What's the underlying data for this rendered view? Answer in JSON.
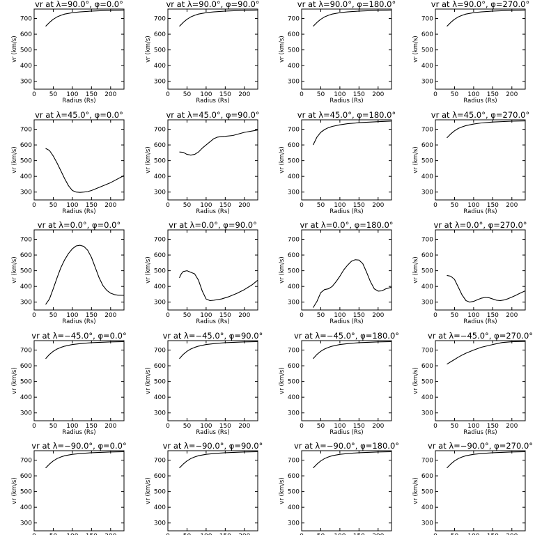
{
  "chart_data": {
    "type": "line",
    "grid": false,
    "xlim": [
      0,
      235
    ],
    "ylim": [
      250,
      760
    ],
    "x_ticks": [
      0,
      50,
      100,
      150,
      200
    ],
    "y_ticks": [
      300,
      400,
      500,
      600,
      700
    ],
    "xlabel": "Radius (Rs)",
    "ylabel": "vr (km/s)",
    "panels": [
      {
        "title": "vr at λ=90.0°, φ=0.0°",
        "series": [
          {
            "x": [
              30,
              40,
              50,
              60,
              70,
              80,
              100,
              120,
              150,
              200,
              235
            ],
            "y": [
              650,
              675,
              695,
              710,
              720,
              728,
              737,
              742,
              747,
              752,
              754
            ]
          }
        ]
      },
      {
        "title": "vr at λ=90.0°, φ=90.0°",
        "series": [
          {
            "x": [
              30,
              40,
              50,
              60,
              70,
              80,
              100,
              120,
              150,
              200,
              235
            ],
            "y": [
              650,
              675,
              695,
              710,
              720,
              728,
              737,
              742,
              747,
              752,
              754
            ]
          }
        ]
      },
      {
        "title": "vr at λ=90.0°, φ=180.0°",
        "series": [
          {
            "x": [
              30,
              40,
              50,
              60,
              70,
              80,
              100,
              120,
              150,
              200,
              235
            ],
            "y": [
              650,
              675,
              695,
              710,
              720,
              728,
              737,
              742,
              747,
              752,
              754
            ]
          }
        ]
      },
      {
        "title": "vr at λ=90.0°, φ=270.0°",
        "series": [
          {
            "x": [
              30,
              40,
              50,
              60,
              70,
              80,
              100,
              120,
              150,
              200,
              235
            ],
            "y": [
              650,
              675,
              695,
              710,
              720,
              728,
              737,
              742,
              747,
              752,
              754
            ]
          }
        ]
      },
      {
        "title": "vr at λ=45.0°, φ=0.0°",
        "series": [
          {
            "x": [
              30,
              40,
              50,
              60,
              70,
              80,
              90,
              100,
              110,
              120,
              130,
              140,
              150,
              170,
              200,
              235
            ],
            "y": [
              578,
              565,
              530,
              485,
              435,
              385,
              340,
              310,
              300,
              298,
              300,
              303,
              310,
              330,
              360,
              405
            ]
          }
        ]
      },
      {
        "title": "vr at λ=45.0°, φ=90.0°",
        "series": [
          {
            "x": [
              30,
              40,
              50,
              60,
              70,
              80,
              90,
              100,
              110,
              120,
              130,
              140,
              150,
              170,
              200,
              235
            ],
            "y": [
              555,
              553,
              540,
              535,
              540,
              555,
              580,
              600,
              620,
              640,
              650,
              653,
              655,
              660,
              680,
              695
            ]
          }
        ]
      },
      {
        "title": "vr at λ=45.0°, φ=180.0°",
        "series": [
          {
            "x": [
              30,
              40,
              50,
              60,
              70,
              80,
              100,
              120,
              150,
              200,
              235
            ],
            "y": [
              600,
              650,
              680,
              698,
              710,
              718,
              728,
              735,
              742,
              748,
              752
            ]
          }
        ]
      },
      {
        "title": "vr at λ=45.0°, φ=270.0°",
        "series": [
          {
            "x": [
              30,
              40,
              50,
              60,
              70,
              80,
              100,
              120,
              150,
              200,
              235
            ],
            "y": [
              645,
              670,
              690,
              705,
              715,
              723,
              733,
              740,
              746,
              751,
              753
            ]
          }
        ]
      },
      {
        "title": "vr at λ=0.0°, φ=0.0°",
        "series": [
          {
            "x": [
              30,
              40,
              50,
              60,
              70,
              80,
              90,
              100,
              110,
              120,
              130,
              140,
              150,
              160,
              170,
              180,
              190,
              200,
              210,
              220,
              235
            ],
            "y": [
              285,
              320,
              385,
              455,
              520,
              570,
              610,
              640,
              658,
              662,
              655,
              630,
              585,
              520,
              455,
              405,
              375,
              357,
              348,
              344,
              343
            ]
          }
        ]
      },
      {
        "title": "vr at λ=0.0°, φ=90.0°",
        "series": [
          {
            "x": [
              30,
              35,
              40,
              50,
              60,
              70,
              80,
              90,
              100,
              110,
              120,
              140,
              160,
              180,
              200,
              220,
              235
            ],
            "y": [
              455,
              480,
              495,
              500,
              490,
              480,
              440,
              370,
              320,
              310,
              312,
              320,
              335,
              355,
              380,
              410,
              440
            ]
          }
        ]
      },
      {
        "title": "vr at λ=0.0°, φ=180.0°",
        "series": [
          {
            "x": [
              30,
              40,
              50,
              60,
              70,
              80,
              90,
              100,
              110,
              120,
              130,
              140,
              150,
              160,
              170,
              180,
              190,
              200,
              210,
              220,
              235
            ],
            "y": [
              265,
              305,
              360,
              380,
              385,
              400,
              430,
              465,
              505,
              535,
              560,
              570,
              568,
              545,
              490,
              430,
              385,
              370,
              372,
              385,
              395
            ]
          }
        ]
      },
      {
        "title": "vr at λ=0.0°, φ=270.0°",
        "series": [
          {
            "x": [
              30,
              40,
              50,
              60,
              70,
              80,
              90,
              100,
              110,
              120,
              130,
              140,
              150,
              160,
              170,
              180,
              190,
              200,
              210,
              220,
              235
            ],
            "y": [
              470,
              465,
              445,
              395,
              345,
              310,
              300,
              305,
              315,
              325,
              330,
              328,
              320,
              312,
              310,
              314,
              322,
              332,
              343,
              355,
              372
            ]
          }
        ]
      },
      {
        "title": "vr at λ=−45.0°, φ=0.0°",
        "series": [
          {
            "x": [
              30,
              40,
              50,
              60,
              70,
              80,
              100,
              120,
              150,
              200,
              235
            ],
            "y": [
              645,
              672,
              692,
              707,
              717,
              725,
              735,
              741,
              747,
              752,
              754
            ]
          }
        ]
      },
      {
        "title": "vr at λ=−45.0°, φ=90.0°",
        "series": [
          {
            "x": [
              30,
              40,
              50,
              60,
              70,
              80,
              100,
              120,
              150,
              200,
              235
            ],
            "y": [
              645,
              672,
              692,
              707,
              717,
              725,
              735,
              741,
              747,
              752,
              754
            ]
          }
        ]
      },
      {
        "title": "vr at λ=−45.0°, φ=180.0°",
        "series": [
          {
            "x": [
              30,
              40,
              50,
              60,
              70,
              80,
              100,
              120,
              150,
              200,
              235
            ],
            "y": [
              645,
              672,
              692,
              707,
              717,
              725,
              735,
              741,
              747,
              752,
              754
            ]
          }
        ]
      },
      {
        "title": "vr at λ=−45.0°, φ=270.0°",
        "series": [
          {
            "x": [
              30,
              40,
              50,
              60,
              70,
              80,
              100,
              120,
              150,
              175,
              200,
              235
            ],
            "y": [
              610,
              625,
              640,
              655,
              668,
              680,
              700,
              718,
              735,
              748,
              753,
              755
            ]
          }
        ]
      },
      {
        "title": "vr at λ=−90.0°, φ=0.0°",
        "series": [
          {
            "x": [
              30,
              40,
              50,
              60,
              70,
              80,
              100,
              120,
              150,
              200,
              235
            ],
            "y": [
              650,
              675,
              695,
              710,
              720,
              728,
              737,
              742,
              747,
              752,
              754
            ]
          }
        ]
      },
      {
        "title": "vr at λ=−90.0°, φ=90.0°",
        "series": [
          {
            "x": [
              30,
              40,
              50,
              60,
              70,
              80,
              100,
              120,
              150,
              200,
              235
            ],
            "y": [
              650,
              675,
              695,
              710,
              720,
              728,
              737,
              742,
              747,
              752,
              754
            ]
          }
        ]
      },
      {
        "title": "vr at λ=−90.0°, φ=180.0°",
        "series": [
          {
            "x": [
              30,
              40,
              50,
              60,
              70,
              80,
              100,
              120,
              150,
              200,
              235
            ],
            "y": [
              650,
              675,
              695,
              710,
              720,
              728,
              737,
              742,
              747,
              752,
              754
            ]
          }
        ]
      },
      {
        "title": "vr at λ=−90.0°, φ=270.0°",
        "series": [
          {
            "x": [
              30,
              40,
              50,
              60,
              70,
              80,
              100,
              120,
              150,
              200,
              235
            ],
            "y": [
              650,
              675,
              695,
              710,
              720,
              728,
              737,
              742,
              747,
              752,
              754
            ]
          }
        ]
      }
    ]
  }
}
